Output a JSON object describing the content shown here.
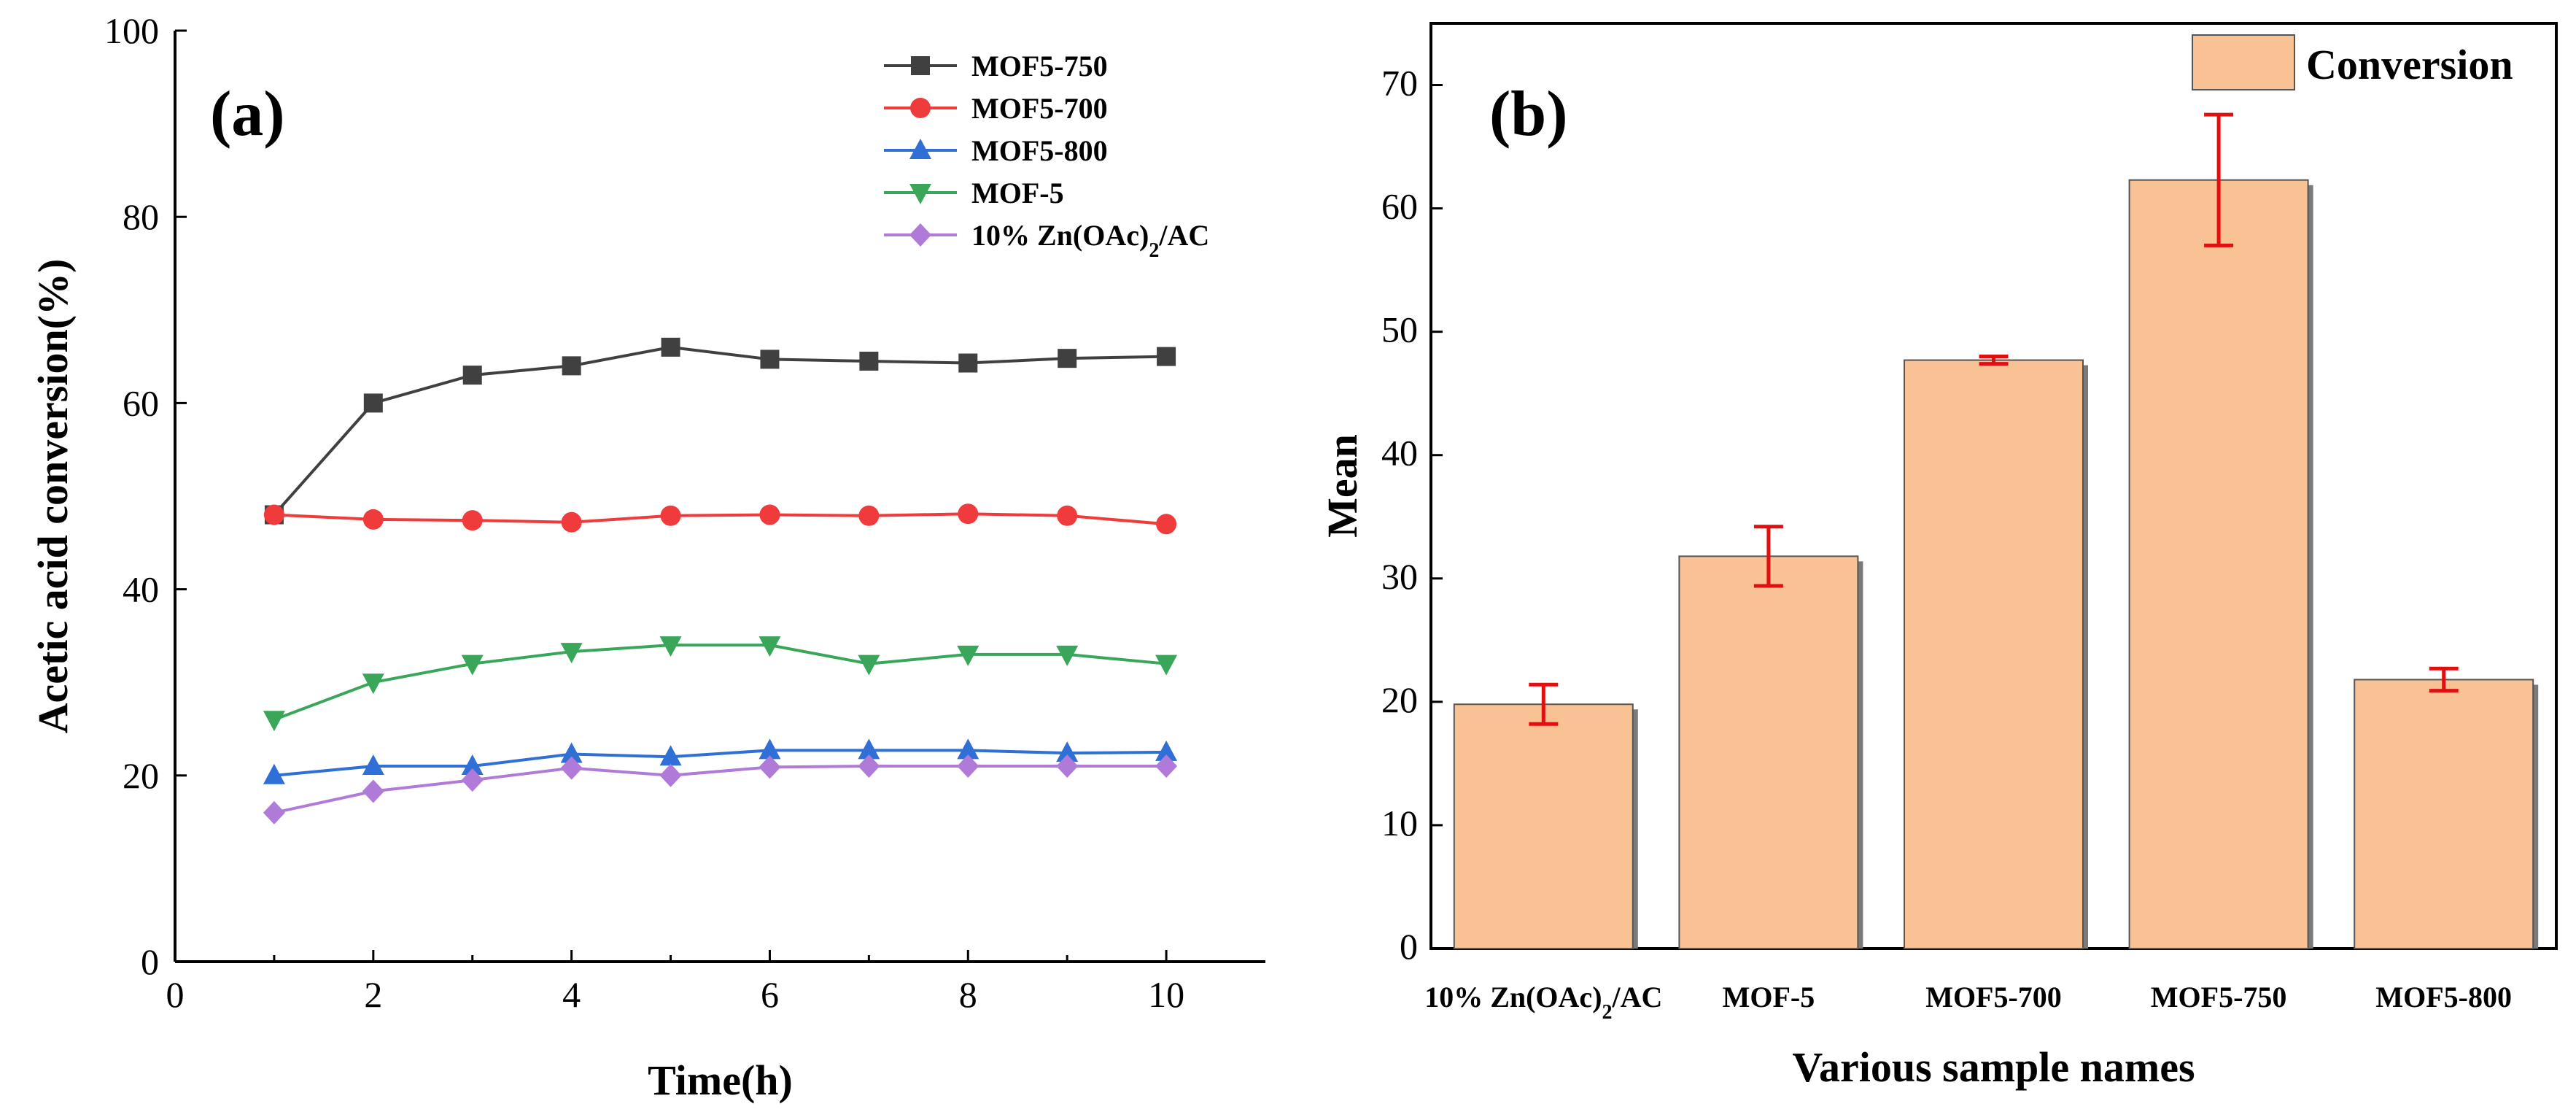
{
  "chart_data": [
    {
      "type": "line",
      "panel_label": "(a)",
      "xlabel": "Time(h)",
      "ylabel": "Acetic acid conversion(%)",
      "xlim": [
        0,
        11
      ],
      "ylim": [
        0,
        100
      ],
      "xticks": [
        0,
        2,
        4,
        6,
        8,
        10
      ],
      "yticks": [
        0,
        20,
        40,
        60,
        80,
        100
      ],
      "legend_position": "top-right",
      "x": [
        1,
        2,
        3,
        4,
        5,
        6,
        7,
        8,
        9,
        10
      ],
      "series": [
        {
          "name": "MOF5-750",
          "marker": "square",
          "color": "#404040",
          "values": [
            48,
            60,
            63,
            64,
            66,
            64.7,
            64.5,
            64.3,
            64.8,
            65
          ]
        },
        {
          "name": "MOF5-700",
          "marker": "circle",
          "color": "#ef3b3b",
          "values": [
            48,
            47.5,
            47.4,
            47.2,
            47.9,
            48,
            47.9,
            48.1,
            47.9,
            47
          ]
        },
        {
          "name": "MOF5-800",
          "marker": "triangle-up",
          "color": "#2f6fd6",
          "values": [
            20,
            21,
            21,
            22.3,
            22,
            22.7,
            22.7,
            22.7,
            22.4,
            22.5
          ]
        },
        {
          "name": "MOF-5",
          "marker": "triangle-down",
          "color": "#3aa65a",
          "values": [
            26,
            30,
            32,
            33.3,
            34,
            34,
            32,
            33,
            33,
            32
          ]
        },
        {
          "name": "10% Zn(OAc)",
          "name_subscript": "2",
          "name_suffix": "/AC",
          "marker": "diamond",
          "color": "#b07ad9",
          "values": [
            16,
            18.3,
            19.5,
            20.8,
            20,
            20.9,
            21,
            21,
            21,
            21
          ]
        }
      ]
    },
    {
      "type": "bar",
      "panel_label": "(b)",
      "xlabel": "Various sample names",
      "ylabel": "Mean",
      "ylim": [
        0,
        75
      ],
      "yticks": [
        0,
        10,
        20,
        30,
        40,
        50,
        60,
        70
      ],
      "legend": "Conversion",
      "legend_position": "top-right",
      "bar_color": "#f8c294",
      "error_color": "#e01010",
      "categories": [
        {
          "name": "10% Zn(OAc)",
          "subscript": "2",
          "suffix": "/AC"
        },
        {
          "name": "MOF-5"
        },
        {
          "name": "MOF5-700"
        },
        {
          "name": "MOF5-750"
        },
        {
          "name": "MOF5-800"
        }
      ],
      "values": [
        19.8,
        31.8,
        47.7,
        62.3,
        21.8
      ],
      "errors": [
        1.6,
        2.4,
        0.3,
        5.3,
        0.9
      ]
    }
  ]
}
